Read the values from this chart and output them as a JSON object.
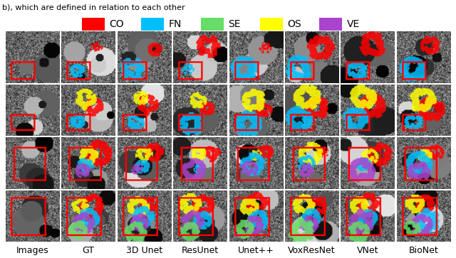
{
  "legend_items": [
    {
      "label": "CO",
      "color": "#ff0000"
    },
    {
      "label": "FN",
      "color": "#00bfff"
    },
    {
      "label": "SE",
      "color": "#66dd66"
    },
    {
      "label": "OS",
      "color": "#ffff00"
    },
    {
      "label": "VE",
      "color": "#aa44cc"
    }
  ],
  "col_labels": [
    "Images",
    "GT",
    "3D Unet",
    "ResUnet",
    "Unet++",
    "VoxResNet",
    "VNet",
    "BioNet"
  ],
  "nrows": 4,
  "ncols": 8,
  "figsize": [
    6.4,
    3.63
  ],
  "dpi": 100,
  "header_text": "b), which are defined in relation to each other",
  "bg_color": "#ffffff",
  "legend_square_size": 18,
  "legend_fontsize": 10,
  "col_label_fontsize": 9
}
